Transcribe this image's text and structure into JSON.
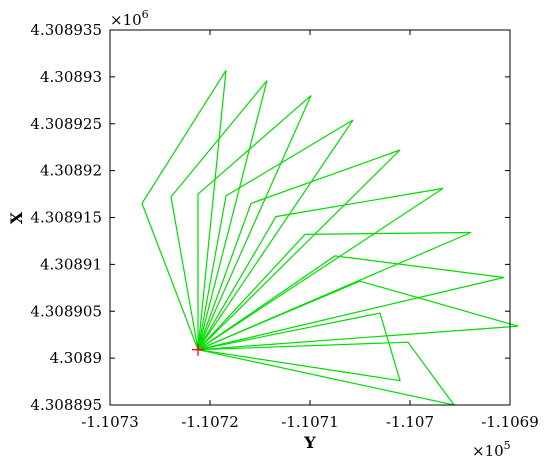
{
  "chart_data": {
    "type": "line",
    "title": "",
    "xlabel": "Y",
    "ylabel": "X",
    "x_multiplier": {
      "base": "×10",
      "exponent": "5"
    },
    "y_multiplier": {
      "base": "×10",
      "exponent": "6"
    },
    "xlim": [
      -110730,
      -110690
    ],
    "ylim": [
      4308895,
      4308935
    ],
    "grid": false,
    "legend": "none",
    "x_ticks": [
      -110730,
      -110720,
      -110710,
      -110700,
      -110690
    ],
    "x_tick_labels": [
      "-1.1073",
      "-1.1072",
      "-1.1071",
      "-1.107",
      "-1.1069"
    ],
    "y_ticks": [
      4308895,
      4308900,
      4308905,
      4308910,
      4308915,
      4308920,
      4308925,
      4308930,
      4308935
    ],
    "y_tick_labels": [
      "4.308895",
      "4.3089",
      "4.308905",
      "4.30891",
      "4.308915",
      "4.30892",
      "4.308925",
      "4.30893",
      "4.308935"
    ],
    "origin_marker": {
      "x": -110721.2,
      "y": 4308900.9,
      "color": "#ff0000",
      "symbol": "+"
    },
    "line_color": "#00dd00",
    "series": [
      {
        "values": [
          [
            -110721.2,
            4308900.9
          ],
          [
            -110726.8,
            4308916.5
          ],
          [
            -110718.4,
            4308930.7
          ],
          [
            -110721.2,
            4308900.9
          ]
        ]
      },
      {
        "values": [
          [
            -110721.2,
            4308900.9
          ],
          [
            -110723.9,
            4308917.2
          ],
          [
            -110714.3,
            4308929.6
          ],
          [
            -110721.2,
            4308900.9
          ]
        ]
      },
      {
        "values": [
          [
            -110721.2,
            4308900.9
          ],
          [
            -110721.2,
            4308917.5
          ],
          [
            -110709.9,
            4308928.0
          ],
          [
            -110721.2,
            4308900.9
          ]
        ]
      },
      {
        "values": [
          [
            -110721.2,
            4308900.9
          ],
          [
            -110718.4,
            4308917.3
          ],
          [
            -110705.7,
            4308925.4
          ],
          [
            -110721.2,
            4308900.9
          ]
        ]
      },
      {
        "values": [
          [
            -110721.2,
            4308900.9
          ],
          [
            -110715.9,
            4308916.5
          ],
          [
            -110701.0,
            4308922.2
          ],
          [
            -110721.2,
            4308900.9
          ]
        ]
      },
      {
        "values": [
          [
            -110721.2,
            4308900.9
          ],
          [
            -110713.4,
            4308915.1
          ],
          [
            -110696.7,
            4308918.1
          ],
          [
            -110721.2,
            4308900.9
          ]
        ]
      },
      {
        "values": [
          [
            -110721.2,
            4308900.9
          ],
          [
            -110710.5,
            4308913.2
          ],
          [
            -110693.9,
            4308913.4
          ],
          [
            -110721.2,
            4308900.9
          ]
        ]
      },
      {
        "values": [
          [
            -110721.2,
            4308900.9
          ],
          [
            -110707.5,
            4308910.9
          ],
          [
            -110690.6,
            4308908.6
          ],
          [
            -110721.2,
            4308900.9
          ]
        ]
      },
      {
        "values": [
          [
            -110721.2,
            4308900.9
          ],
          [
            -110705.0,
            4308908.2
          ],
          [
            -110689.2,
            4308903.4
          ],
          [
            -110721.2,
            4308900.9
          ]
        ]
      },
      {
        "values": [
          [
            -110721.2,
            4308900.9
          ],
          [
            -110703.0,
            4308904.8
          ],
          [
            -110701.0,
            4308897.6
          ],
          [
            -110721.2,
            4308900.9
          ]
        ]
      },
      {
        "values": [
          [
            -110721.2,
            4308900.9
          ],
          [
            -110700.2,
            4308901.7
          ],
          [
            -110695.6,
            4308895.0
          ],
          [
            -110721.2,
            4308900.9
          ]
        ]
      }
    ]
  }
}
